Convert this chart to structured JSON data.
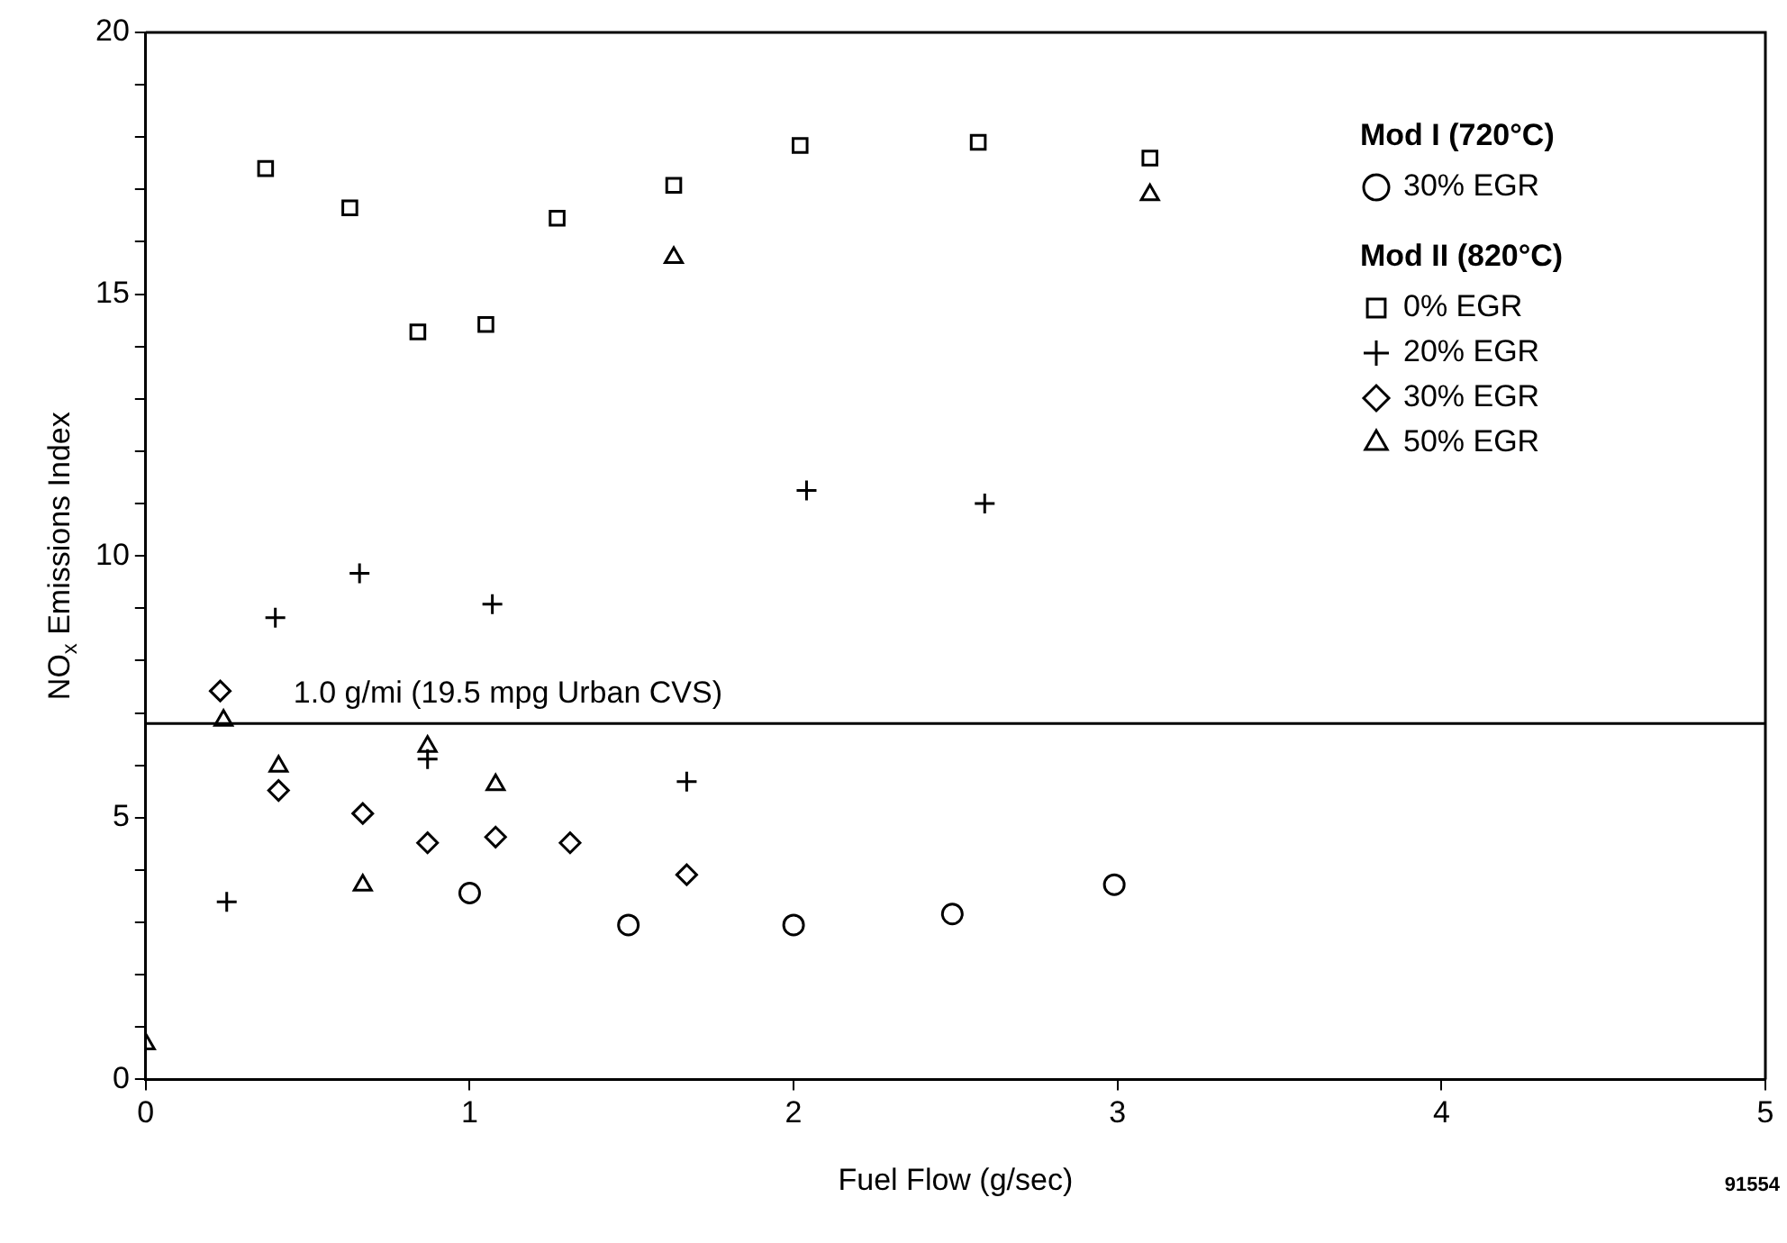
{
  "chart_data": {
    "type": "scatter",
    "xlabel": "Fuel Flow (g/sec)",
    "ylabel": "NO$_{x}$ Emissions Index",
    "xlim": [
      0,
      5
    ],
    "xticks": [
      0,
      1,
      2,
      3,
      4,
      5
    ],
    "ylim": [
      0,
      20
    ],
    "yticks": [
      0,
      {
        "value": 1,
        "label": null
      },
      {
        "value": 2,
        "label": null
      },
      {
        "value": 3,
        "label": null
      },
      {
        "value": 4,
        "label": null
      },
      5,
      {
        "value": 6,
        "label": null
      },
      {
        "value": 7,
        "label": null
      },
      {
        "value": 8,
        "label": null
      },
      {
        "value": 9,
        "label": null
      },
      10,
      {
        "value": 11,
        "label": null
      },
      {
        "value": 12,
        "label": null
      },
      {
        "value": 13,
        "label": null
      },
      {
        "value": 14,
        "label": null
      },
      15,
      {
        "value": 16,
        "label": null
      },
      {
        "value": 17,
        "label": null
      },
      {
        "value": 18,
        "label": null
      },
      {
        "value": 19,
        "label": null
      },
      20
    ],
    "grid": false,
    "legend": "top right",
    "series": [
      {
        "name": "30% EGR",
        "color": "#000000",
        "marker": "circle",
        "x": [
          1.0,
          1.49,
          2.0,
          2.49,
          2.99
        ],
        "values": [
          3.56,
          2.95,
          2.95,
          3.16,
          3.72
        ]
      },
      {
        "name": "0% EGR",
        "color": "#000000",
        "marker": "square",
        "x": [
          0.37,
          0.63,
          0.84,
          1.05,
          1.27,
          1.63,
          2.02,
          2.57,
          3.1
        ],
        "values": [
          17.4,
          16.65,
          14.28,
          14.42,
          16.45,
          17.08,
          17.84,
          17.9,
          17.6
        ]
      },
      {
        "name": "20% EGR",
        "color": "#000000",
        "marker": "cross",
        "x": [
          0.25,
          0.4,
          0.66,
          0.87,
          1.07,
          1.67,
          2.04,
          2.59
        ],
        "values": [
          3.39,
          8.82,
          9.67,
          6.12,
          9.08,
          5.69,
          11.25,
          11.0
        ]
      },
      {
        "name": "30% EGR",
        "color": "#000000",
        "marker": "diamond",
        "x": [
          0.23,
          0.41,
          0.67,
          0.87,
          1.08,
          1.31,
          1.67
        ],
        "values": [
          7.42,
          5.52,
          5.08,
          4.52,
          4.63,
          4.52,
          3.91
        ]
      },
      {
        "name": "50% EGR",
        "color": "#000000",
        "marker": "triangle",
        "x": [
          0.0,
          0.24,
          0.41,
          0.67,
          0.87,
          1.08,
          1.63,
          3.1
        ],
        "values": [
          0.68,
          6.86,
          5.98,
          3.71,
          6.36,
          5.63,
          15.7,
          16.9
        ]
      }
    ],
    "ref_lines": [
      {
        "axis": "y",
        "value": 6.8,
        "label": "1.0 g/mi (19.5 mpg Urban CVS)",
        "color": "#000000"
      }
    ],
    "annotations": [
      "Mod I (720°C)",
      "Mod II (820°C)",
      "91554"
    ]
  }
}
